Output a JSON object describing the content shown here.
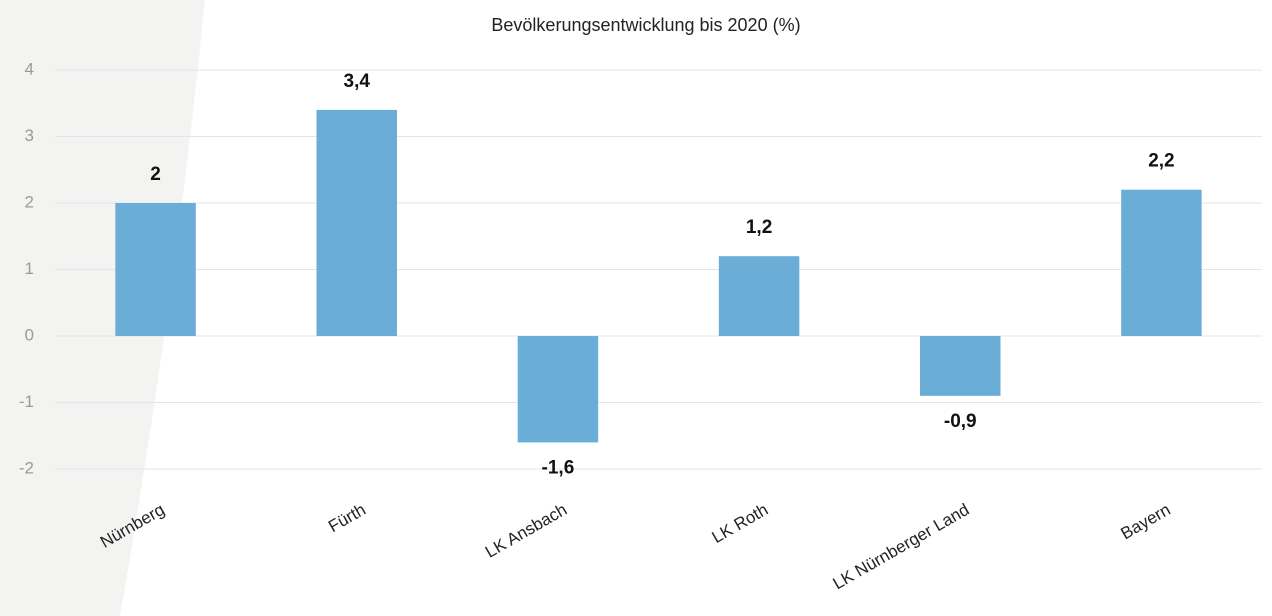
{
  "chart_data": {
    "type": "bar",
    "title": "Bevölkerungsentwicklung bis 2020 (%)",
    "categories": [
      "Nürnberg",
      "Fürth",
      "LK Ansbach",
      "LK Roth",
      "LK Nürnberger Land",
      "Bayern"
    ],
    "values": [
      2,
      3.4,
      -1.6,
      1.2,
      -0.9,
      2.2
    ],
    "value_labels": [
      "2",
      "3,4",
      "-1,6",
      "1,2",
      "-0,9",
      "2,2"
    ],
    "color": "#6aadd6",
    "ylim": [
      -2,
      4
    ],
    "yticks": [
      -2,
      -1,
      0,
      1,
      2,
      3,
      4
    ],
    "grid": true
  }
}
